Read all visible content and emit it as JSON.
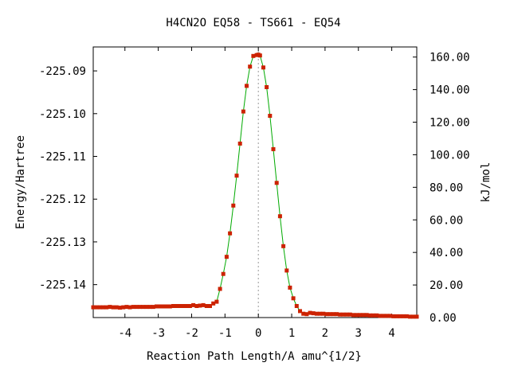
{
  "chart_data": {
    "type": "line",
    "title": "H4CN2O   EQ58 - TS661 - EQ54",
    "xlabel": "Reaction Path Length/A amu^{1/2}",
    "ylabel": "Energy/Hartree",
    "y2label": "kJ/mol",
    "xlim": [
      -4.95,
      4.75
    ],
    "ylim": [
      -225.1477,
      -225.0844
    ],
    "y2lim": [
      0.0,
      166.2
    ],
    "x_ticks": [
      -4,
      -3,
      -2,
      -1,
      0,
      1,
      2,
      3,
      4
    ],
    "y_ticks": [
      -225.09,
      -225.1,
      -225.11,
      -225.12,
      -225.13,
      -225.14
    ],
    "y_tick_labels": [
      "-225.09",
      "-225.10",
      "-225.11",
      "-225.12",
      "-225.13",
      "-225.14"
    ],
    "y2_ticks": [
      0,
      20,
      40,
      60,
      80,
      100,
      120,
      140,
      160
    ],
    "y2_tick_labels": [
      "0.00",
      "20.00",
      "40.00",
      "60.00",
      "80.00",
      "100.00",
      "120.00",
      "140.00",
      "160.00"
    ],
    "grid": false,
    "ts_marker_x": 0,
    "colors": {
      "points": "#cc2200",
      "line": "#00aa00",
      "ts_line": "#999999"
    },
    "series": [
      {
        "x": [
          -4.95,
          -4.85,
          -4.75,
          -4.65,
          -4.55,
          -4.45,
          -4.35,
          -4.25,
          -4.15,
          -4.05,
          -3.95,
          -3.85,
          -3.75,
          -3.65,
          -3.55,
          -3.45,
          -3.35,
          -3.25,
          -3.15,
          -3.05,
          -2.95,
          -2.85,
          -2.75,
          -2.65,
          -2.55,
          -2.45,
          -2.35,
          -2.25,
          -2.15,
          -2.05,
          -1.95,
          -1.85,
          -1.75,
          -1.65,
          -1.55,
          -1.45,
          -1.35,
          -1.25,
          -1.15,
          -1.05,
          -0.95,
          -0.85,
          -0.75,
          -0.65,
          -0.55,
          -0.45,
          -0.35,
          -0.25,
          -0.15,
          -0.05,
          0.0,
          0.05,
          0.15,
          0.25,
          0.35,
          0.45,
          0.55,
          0.65,
          0.75,
          0.85,
          0.95,
          1.05,
          1.15,
          1.25,
          1.35,
          1.45,
          1.55,
          1.65,
          1.75,
          1.85,
          1.95,
          2.05,
          2.15,
          2.25,
          2.35,
          2.45,
          2.55,
          2.65,
          2.75,
          2.85,
          2.95,
          3.05,
          3.15,
          3.25,
          3.35,
          3.45,
          3.55,
          3.65,
          3.75,
          3.85,
          3.95,
          4.05,
          4.15,
          4.25,
          4.35,
          4.45,
          4.55,
          4.65,
          4.75
        ],
        "y": [
          -225.1453,
          -225.1453,
          -225.1453,
          -225.1453,
          -225.1453,
          -225.1452,
          -225.1453,
          -225.1453,
          -225.1454,
          -225.1453,
          -225.1452,
          -225.1453,
          -225.1452,
          -225.1452,
          -225.1452,
          -225.1452,
          -225.1452,
          -225.1452,
          -225.1452,
          -225.1451,
          -225.1451,
          -225.1451,
          -225.1451,
          -225.1451,
          -225.145,
          -225.145,
          -225.145,
          -225.145,
          -225.145,
          -225.145,
          -225.1448,
          -225.145,
          -225.1449,
          -225.1448,
          -225.145,
          -225.145,
          -225.1444,
          -225.144,
          -225.141,
          -225.1375,
          -225.1335,
          -225.128,
          -225.1215,
          -225.1145,
          -225.107,
          -225.0995,
          -225.0935,
          -225.089,
          -225.0865,
          -225.0863,
          -225.0862,
          -225.0864,
          -225.0892,
          -225.0938,
          -225.1005,
          -225.1083,
          -225.1162,
          -225.124,
          -225.131,
          -225.1367,
          -225.1407,
          -225.1432,
          -225.145,
          -225.1462,
          -225.1468,
          -225.1469,
          -225.1466,
          -225.1467,
          -225.1468,
          -225.1468,
          -225.1468,
          -225.1469,
          -225.1469,
          -225.1469,
          -225.1469,
          -225.147,
          -225.147,
          -225.147,
          -225.147,
          -225.1471,
          -225.1471,
          -225.1471,
          -225.1471,
          -225.1471,
          -225.1472,
          -225.1472,
          -225.1472,
          -225.1473,
          -225.1473,
          -225.1473,
          -225.1473,
          -225.1474,
          -225.1474,
          -225.1474,
          -225.1474,
          -225.1474,
          -225.1475,
          -225.1475,
          -225.1475
        ]
      }
    ]
  }
}
